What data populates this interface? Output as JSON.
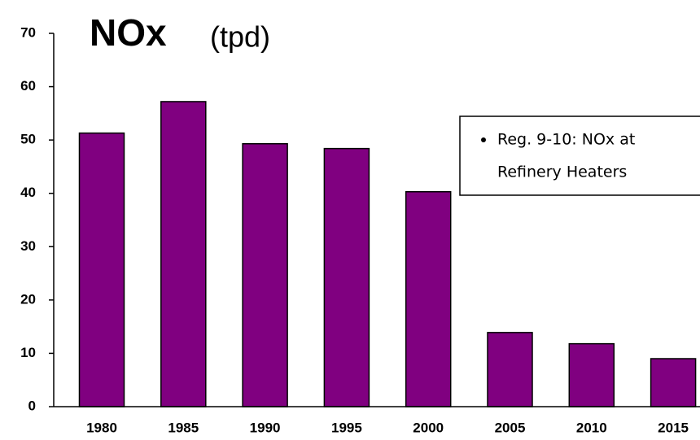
{
  "chart_data": {
    "type": "bar",
    "title": "NOx",
    "subtitle": "(tpd)",
    "categories": [
      "1980",
      "1985",
      "1990",
      "1995",
      "2000",
      "2005",
      "2010",
      "2015"
    ],
    "values": [
      51.3,
      57.2,
      49.3,
      48.4,
      40.3,
      13.9,
      11.8,
      9.0
    ],
    "color": "#800080",
    "ylim": [
      0,
      70
    ],
    "yticks": [
      0,
      10,
      20,
      30,
      40,
      50,
      60,
      70
    ],
    "grid": false,
    "annotation": [
      "Reg. 9-10:   NOx at",
      "Refinery Heaters"
    ]
  }
}
